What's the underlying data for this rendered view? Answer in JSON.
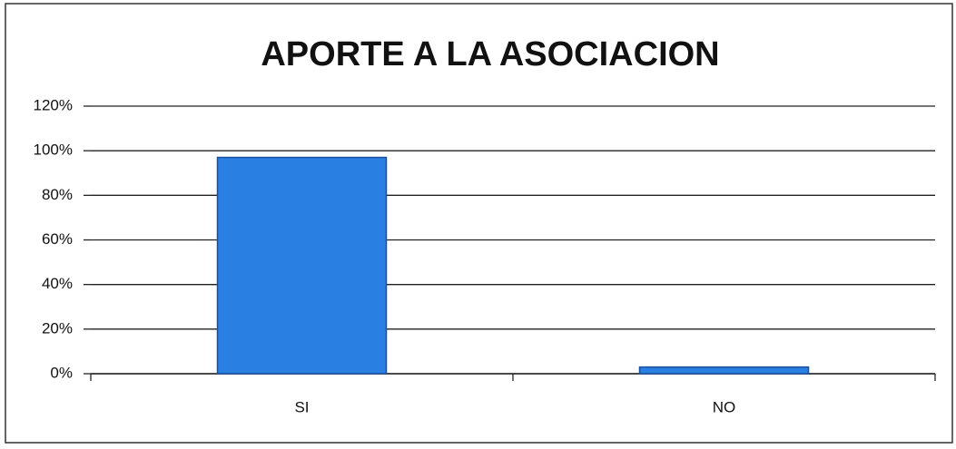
{
  "chart_data": {
    "type": "bar",
    "title": "APORTE A LA ASOCIACION",
    "categories": [
      "SI",
      "NO"
    ],
    "values": [
      97,
      3
    ],
    "color": "#2a7fe2",
    "ylim": [
      0,
      120
    ],
    "yticks": [
      {
        "value": 0,
        "label": "0%"
      },
      {
        "value": 20,
        "label": "20%"
      },
      {
        "value": 40,
        "label": "40%"
      },
      {
        "value": 60,
        "label": "60%"
      },
      {
        "value": 80,
        "label": "80%"
      },
      {
        "value": 100,
        "label": "100%"
      },
      {
        "value": 120,
        "label": "120%"
      }
    ],
    "grid": true
  }
}
